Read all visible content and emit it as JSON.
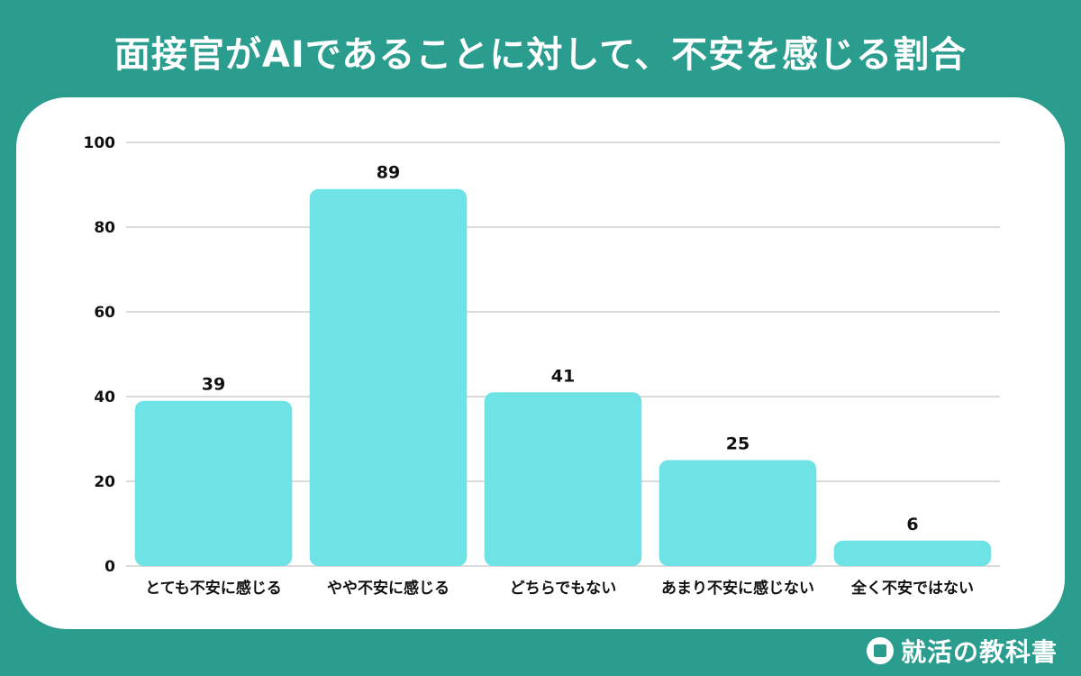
{
  "title": "面接官がAIであることに対して、不安を感じる割合",
  "brand": {
    "text": "就活の教科書",
    "icon": "book-icon"
  },
  "colors": {
    "background": "#2a9d8f",
    "bar": "#6ee3e6",
    "grid": "#cfcfcf"
  },
  "chart_data": {
    "type": "bar",
    "categories": [
      "とても不安に感じる",
      "やや不安に感じる",
      "どちらでもない",
      "あまり不安に感じない",
      "全く不安ではない"
    ],
    "values": [
      39,
      89,
      41,
      25,
      6
    ],
    "ylim": [
      0,
      100
    ],
    "yticks": [
      0,
      20,
      40,
      60,
      80,
      100
    ],
    "grid": true,
    "xlabel": "",
    "ylabel": ""
  }
}
